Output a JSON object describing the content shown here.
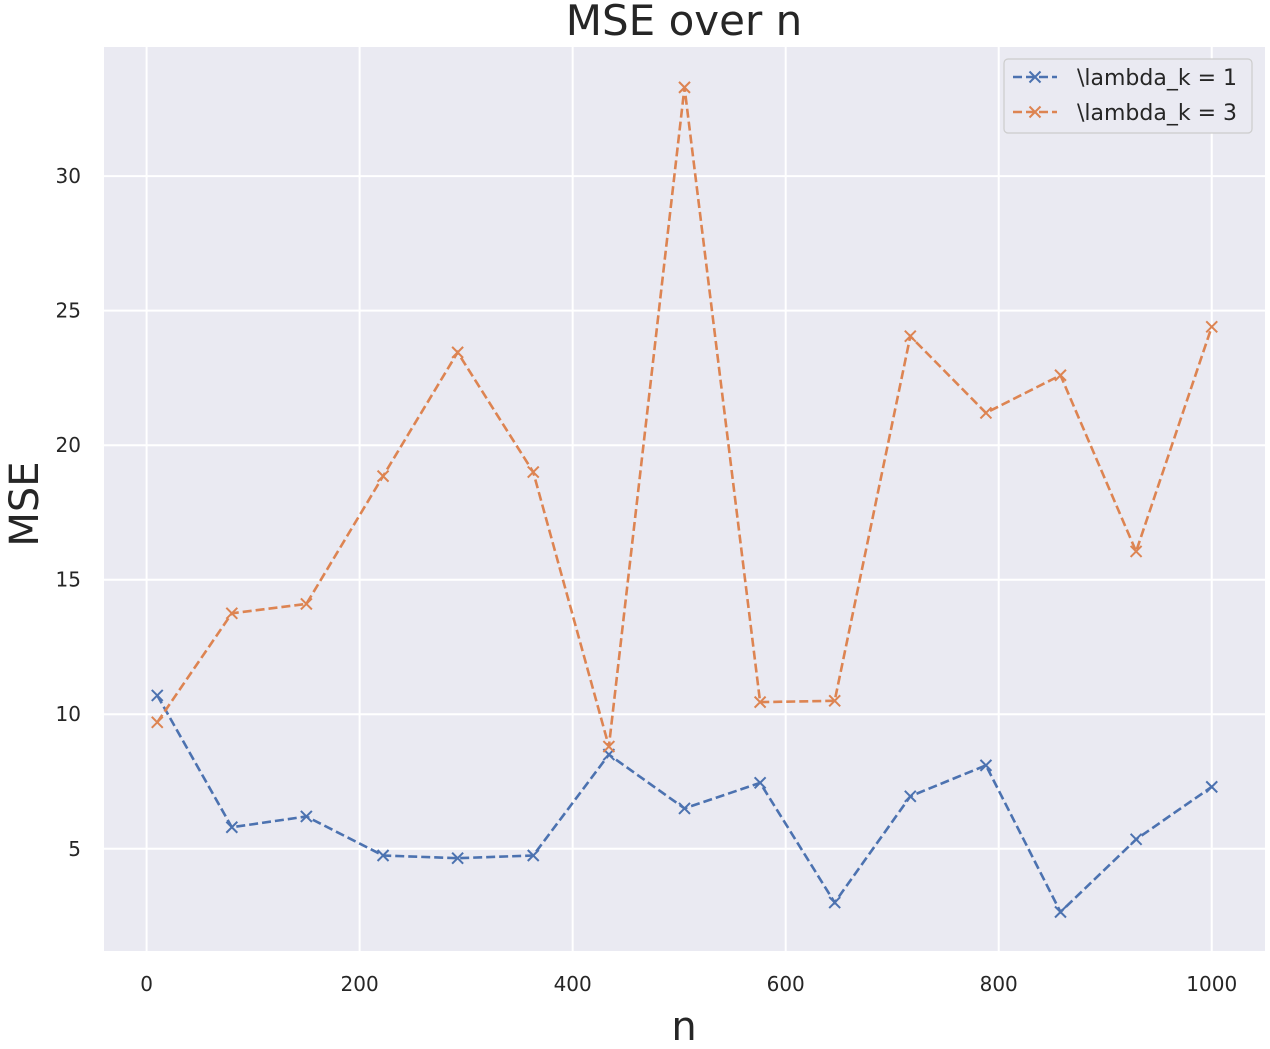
{
  "chart_data": {
    "type": "line",
    "title": "MSE over n",
    "xlabel": "n",
    "ylabel": "MSE",
    "xlim": [
      -40,
      1050
    ],
    "ylim": [
      1.2,
      34.8
    ],
    "xticks": [
      0,
      200,
      400,
      600,
      800,
      1000
    ],
    "yticks": [
      5,
      10,
      15,
      20,
      25,
      30
    ],
    "grid": true,
    "legend_position": "top-right",
    "line_style": "dashed",
    "marker": "x",
    "x": [
      10,
      80,
      150,
      222,
      292,
      363,
      434,
      505,
      576,
      646,
      717,
      788,
      858,
      929,
      1000
    ],
    "series": [
      {
        "name": "\\lambda_k = 1",
        "color": "#4c72b0",
        "values": [
          10.7,
          5.8,
          6.2,
          4.75,
          4.65,
          4.75,
          8.5,
          6.5,
          7.45,
          3.0,
          6.95,
          8.1,
          2.65,
          5.35,
          7.3
        ]
      },
      {
        "name": "\\lambda_k = 3",
        "color": "#dd8452",
        "values": [
          9.7,
          13.75,
          14.1,
          18.85,
          23.45,
          19.0,
          8.8,
          33.3,
          10.45,
          10.5,
          24.05,
          21.2,
          22.6,
          16.05,
          24.4
        ]
      }
    ]
  }
}
